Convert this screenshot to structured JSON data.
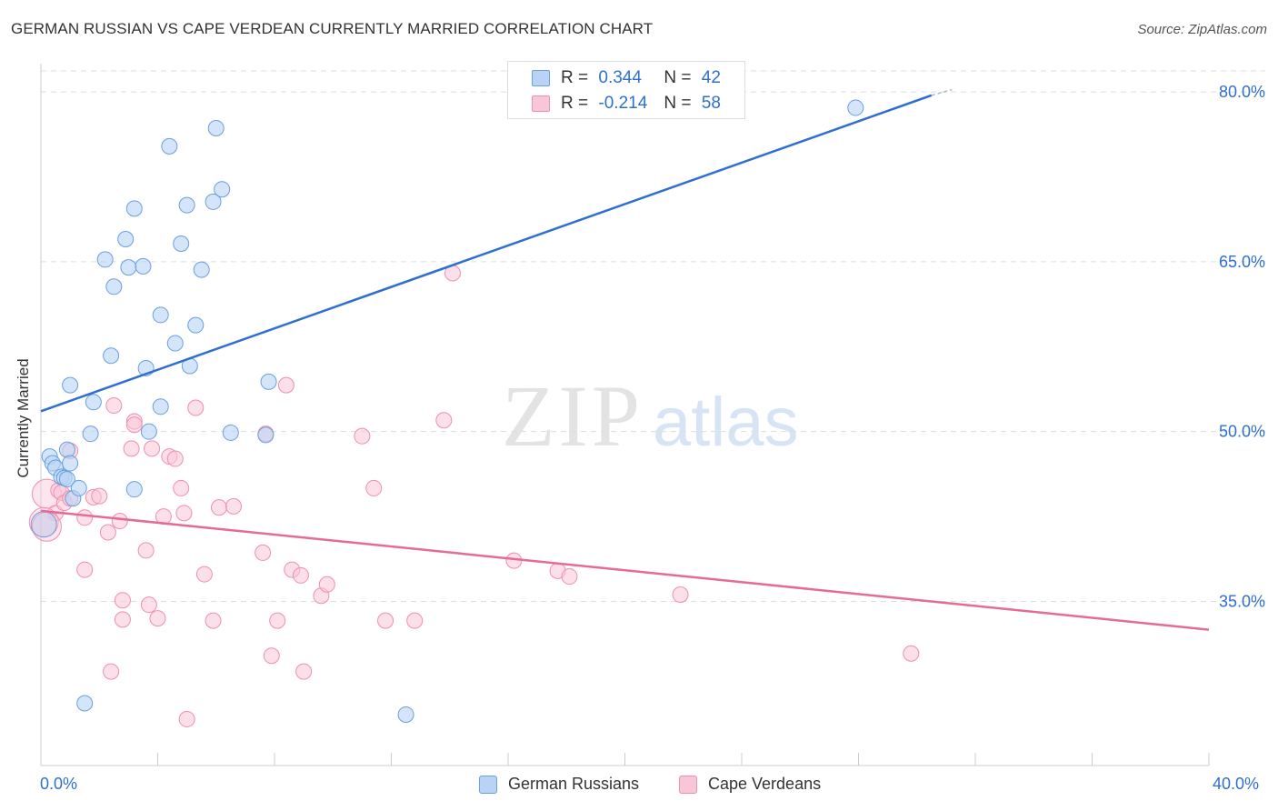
{
  "title": "GERMAN RUSSIAN VS CAPE VERDEAN CURRENTLY MARRIED CORRELATION CHART",
  "source": "Source: ZipAtlas.com",
  "watermark": {
    "zip": "ZIP",
    "atlas": "atlas"
  },
  "legend_top": {
    "rows": [
      {
        "r_label": "R =",
        "r_value": "0.344",
        "n_label": "N =",
        "n_value": "42"
      },
      {
        "r_label": "R =",
        "r_value": "-0.214",
        "n_label": "N =",
        "n_value": "58"
      }
    ]
  },
  "legend_bottom": {
    "items": [
      "German Russians",
      "Cape Verdeans"
    ]
  },
  "colors": {
    "blue_fill": "#b8d3f5",
    "blue_stroke": "#6a9fe0",
    "blue_line": "#2f6fcf",
    "pink_fill": "#f9c6d7",
    "pink_stroke": "#ee8fae",
    "pink_line": "#e46b97",
    "axis_text": "#2f6fcf",
    "grid": "#dddddd"
  },
  "chart_data": {
    "type": "scatter",
    "title": "GERMAN RUSSIAN VS CAPE VERDEAN CURRENTLY MARRIED CORRELATION CHART",
    "xlabel": "",
    "ylabel": "Currently Married",
    "x_tick_labels": [
      "0.0%",
      "40.0%"
    ],
    "y_tick_labels": [
      "80.0%",
      "65.0%",
      "50.0%",
      "35.0%"
    ],
    "y_ticks": [
      80,
      65,
      50,
      35
    ],
    "xlim": [
      0,
      40
    ],
    "ylim": [
      20.5,
      82.5
    ],
    "grid": true,
    "legend_position": "bottom",
    "series": [
      {
        "name": "German Russians",
        "color": "#6a9fe0",
        "trend": {
          "x": [
            0,
            30.5
          ],
          "y": [
            51.8,
            79.7
          ]
        },
        "trend_dashed_extension": {
          "x": [
            30.5,
            31.2
          ],
          "y": [
            79.7,
            80.2
          ]
        },
        "points": [
          [
            0.3,
            47.8
          ],
          [
            0.4,
            47.2
          ],
          [
            0.5,
            46.8
          ],
          [
            0.7,
            46.0
          ],
          [
            0.8,
            45.9
          ],
          [
            0.9,
            45.8
          ],
          [
            1.1,
            44.1
          ],
          [
            1.3,
            45.0
          ],
          [
            0.9,
            48.4
          ],
          [
            1.0,
            47.2
          ],
          [
            1.7,
            49.8
          ],
          [
            1.0,
            54.1
          ],
          [
            1.8,
            52.6
          ],
          [
            2.4,
            56.7
          ],
          [
            2.5,
            62.8
          ],
          [
            2.2,
            65.2
          ],
          [
            2.9,
            67.0
          ],
          [
            3.2,
            69.7
          ],
          [
            3.0,
            64.5
          ],
          [
            3.5,
            64.6
          ],
          [
            3.6,
            55.6
          ],
          [
            3.7,
            50.0
          ],
          [
            4.1,
            52.2
          ],
          [
            4.1,
            60.3
          ],
          [
            4.4,
            75.2
          ],
          [
            4.6,
            57.8
          ],
          [
            4.8,
            66.6
          ],
          [
            5.0,
            70.0
          ],
          [
            5.1,
            55.8
          ],
          [
            5.3,
            59.4
          ],
          [
            5.5,
            64.3
          ],
          [
            5.9,
            70.3
          ],
          [
            6.0,
            76.8
          ],
          [
            6.2,
            71.4
          ],
          [
            6.5,
            49.9
          ],
          [
            7.7,
            49.7
          ],
          [
            7.8,
            54.4
          ],
          [
            3.2,
            44.9
          ],
          [
            1.5,
            26.0
          ],
          [
            12.5,
            25.0
          ],
          [
            27.9,
            78.6
          ],
          [
            0.1,
            41.8
          ]
        ]
      },
      {
        "name": "Cape Verdeans",
        "color": "#ee8fae",
        "trend": {
          "x": [
            0,
            40
          ],
          "y": [
            43.0,
            32.5
          ]
        },
        "points": [
          [
            0.2,
            44.5
          ],
          [
            0.5,
            42.8
          ],
          [
            0.6,
            44.8
          ],
          [
            0.7,
            44.6
          ],
          [
            0.8,
            43.7
          ],
          [
            1.0,
            44.1
          ],
          [
            1.0,
            48.3
          ],
          [
            1.5,
            42.4
          ],
          [
            1.5,
            37.8
          ],
          [
            1.8,
            44.2
          ],
          [
            2.0,
            44.3
          ],
          [
            2.3,
            41.1
          ],
          [
            2.4,
            28.8
          ],
          [
            2.5,
            52.3
          ],
          [
            2.7,
            42.1
          ],
          [
            2.8,
            33.4
          ],
          [
            2.8,
            35.1
          ],
          [
            3.1,
            48.5
          ],
          [
            3.2,
            50.9
          ],
          [
            3.2,
            50.6
          ],
          [
            3.6,
            39.5
          ],
          [
            3.7,
            34.7
          ],
          [
            3.8,
            48.5
          ],
          [
            4.0,
            33.5
          ],
          [
            4.2,
            42.5
          ],
          [
            4.4,
            47.8
          ],
          [
            4.6,
            47.6
          ],
          [
            4.8,
            45.0
          ],
          [
            4.9,
            42.8
          ],
          [
            5.0,
            24.6
          ],
          [
            5.3,
            52.1
          ],
          [
            5.6,
            37.4
          ],
          [
            5.9,
            33.3
          ],
          [
            6.1,
            43.3
          ],
          [
            6.6,
            43.4
          ],
          [
            7.6,
            39.3
          ],
          [
            7.7,
            49.8
          ],
          [
            7.9,
            30.2
          ],
          [
            8.1,
            33.3
          ],
          [
            8.4,
            54.1
          ],
          [
            8.6,
            37.8
          ],
          [
            8.9,
            37.3
          ],
          [
            9.0,
            28.8
          ],
          [
            9.6,
            35.5
          ],
          [
            9.8,
            36.5
          ],
          [
            11.0,
            49.6
          ],
          [
            11.4,
            45.0
          ],
          [
            11.8,
            33.3
          ],
          [
            12.8,
            33.3
          ],
          [
            13.8,
            51.0
          ],
          [
            14.1,
            64.0
          ],
          [
            16.2,
            38.6
          ],
          [
            17.7,
            37.7
          ],
          [
            18.1,
            37.2
          ],
          [
            21.9,
            35.6
          ],
          [
            29.8,
            30.4
          ],
          [
            0.1,
            42.0
          ],
          [
            0.2,
            41.6
          ]
        ]
      }
    ]
  }
}
